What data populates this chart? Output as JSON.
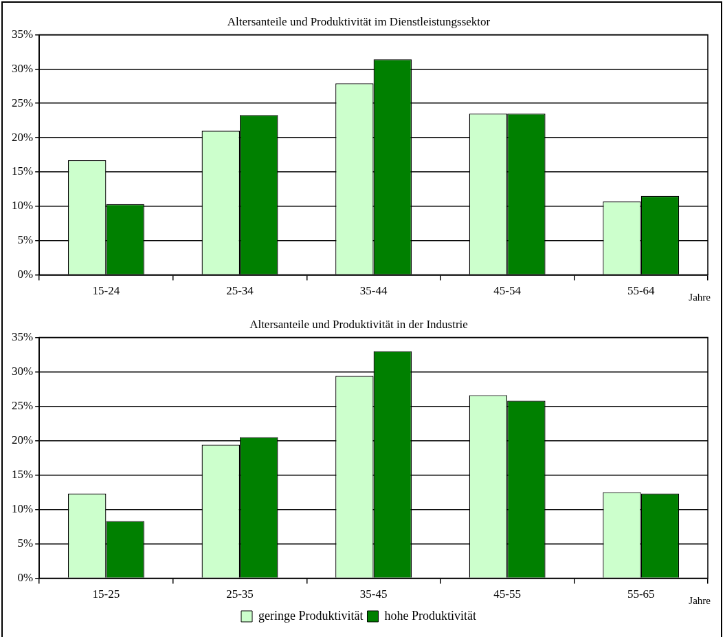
{
  "chart_data": [
    {
      "type": "bar",
      "title": "Altersanteile und Produktivität im Dienstleistungssektor",
      "xlabel": "Jahre",
      "categories": [
        "15-24",
        "25-34",
        "35-44",
        "45-54",
        "55-64"
      ],
      "series": [
        {
          "color": "#ccffcc",
          "values": [
            16.7,
            21.0,
            27.9,
            23.5,
            10.7
          ]
        },
        {
          "color": "#008000",
          "values": [
            10.3,
            23.3,
            31.4,
            23.5,
            11.5
          ]
        }
      ],
      "ylim": [
        0,
        35
      ],
      "yticks": [
        {
          "value": 0,
          "label": "0%"
        },
        {
          "value": 5,
          "label": "5%"
        },
        {
          "value": 10,
          "label": "10%"
        },
        {
          "value": 15,
          "label": "15%"
        },
        {
          "value": 20,
          "label": "20%"
        },
        {
          "value": 25,
          "label": "25%"
        },
        {
          "value": 30,
          "label": "30%"
        },
        {
          "value": 35,
          "label": "35%"
        }
      ],
      "grid": "y",
      "legend": false
    },
    {
      "type": "bar",
      "title": "Altersanteile und Produktivität in der Industrie",
      "xlabel": "Jahre",
      "categories": [
        "15-25",
        "25-35",
        "35-45",
        "45-55",
        "55-65"
      ],
      "series": [
        {
          "name": "geringe Produktivität",
          "color": "#ccffcc",
          "values": [
            12.3,
            19.4,
            29.4,
            26.6,
            12.5
          ]
        },
        {
          "name": "hohe Produktivität",
          "color": "#008000",
          "values": [
            8.3,
            20.5,
            33.0,
            25.8,
            12.3
          ]
        }
      ],
      "ylim": [
        0,
        35
      ],
      "yticks": [
        {
          "value": 0,
          "label": "0%"
        },
        {
          "value": 5,
          "label": "5%"
        },
        {
          "value": 10,
          "label": "10%"
        },
        {
          "value": 15,
          "label": "15%"
        },
        {
          "value": 20,
          "label": "20%"
        },
        {
          "value": 25,
          "label": "25%"
        },
        {
          "value": 30,
          "label": "30%"
        },
        {
          "value": 35,
          "label": "35%"
        }
      ],
      "grid": "y",
      "legend": "bottom"
    }
  ]
}
